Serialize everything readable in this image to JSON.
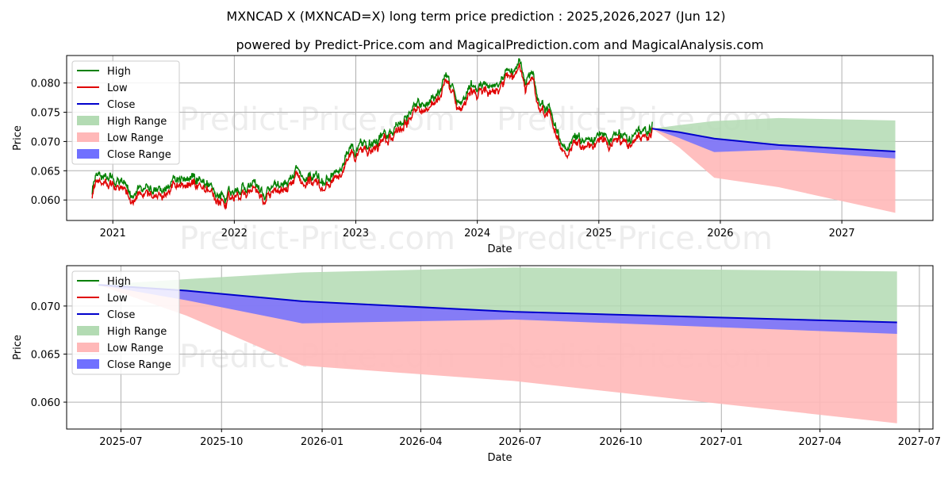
{
  "chart_data": {
    "type": "line",
    "title": "MXNCAD X (MXNCAD=X) long term price prediction : 2025,2026,2027 (Jun 12)",
    "subtitle": "powered by Predict-Price.com and MagicalPrediction.com and MagicalAnalysis.com",
    "watermark": "Predict-Price.com",
    "colors": {
      "high": "#008000",
      "low": "#e00000",
      "close": "#0000cc",
      "high_range": "#b3dbb3",
      "low_range": "#ffb8b8",
      "close_range": "#7070ff"
    },
    "legend": {
      "placement": "top-left",
      "entries": [
        "High",
        "Low",
        "Close",
        "High Range",
        "Low Range",
        "Close Range"
      ]
    },
    "panels": [
      {
        "name": "full-history",
        "xlabel": "Date",
        "ylabel": "Price",
        "xlim": [
          2020.62,
          2027.75
        ],
        "ylim": [
          0.0565,
          0.0847
        ],
        "grid": true,
        "x_ticks": [
          2021,
          2022,
          2023,
          2024,
          2025,
          2026,
          2027
        ],
        "x_tick_labels": [
          "2021",
          "2022",
          "2023",
          "2024",
          "2025",
          "2026",
          "2027"
        ],
        "y_ticks": [
          0.06,
          0.065,
          0.07,
          0.075,
          0.08
        ],
        "y_tick_labels": [
          "0.060",
          "0.065",
          "0.070",
          "0.075",
          "0.080"
        ]
      },
      {
        "name": "forecast-zoom",
        "xlabel": "Date",
        "ylabel": "Price",
        "xlim": [
          2025.36,
          2027.53
        ],
        "ylim": [
          0.0572,
          0.0742
        ],
        "grid": true,
        "x_ticks": [
          2025.496,
          2025.748,
          2026.0,
          2026.247,
          2026.496,
          2026.748,
          2027.0,
          2027.247,
          2027.496
        ],
        "x_tick_labels": [
          "2025-07",
          "2025-10",
          "2026-01",
          "2026-04",
          "2026-07",
          "2026-10",
          "2027-01",
          "2027-04",
          "2027-07"
        ],
        "y_ticks": [
          0.06,
          0.065,
          0.07
        ],
        "y_tick_labels": [
          "0.060",
          "0.065",
          "0.070"
        ]
      }
    ],
    "history_anchors": {
      "x": [
        2020.83,
        2020.85,
        2020.9,
        2020.95,
        2021.05,
        2021.15,
        2021.25,
        2021.35,
        2021.45,
        2021.55,
        2021.65,
        2021.75,
        2021.85,
        2021.95,
        2022.05,
        2022.15,
        2022.25,
        2022.35,
        2022.45,
        2022.55,
        2022.65,
        2022.75,
        2022.8,
        2022.85,
        2022.95,
        2023.05,
        2023.12,
        2023.2,
        2023.3,
        2023.4,
        2023.5,
        2023.6,
        2023.68,
        2023.75,
        2023.85,
        2023.95,
        2024.05,
        2024.15,
        2024.2,
        2024.28,
        2024.35,
        2024.4,
        2024.45,
        2024.52,
        2024.6,
        2024.7,
        2024.8,
        2024.9,
        2025.0,
        2025.1,
        2025.2,
        2025.3,
        2025.36,
        2025.44
      ],
      "close": [
        0.0608,
        0.0635,
        0.0643,
        0.0638,
        0.0628,
        0.0602,
        0.0615,
        0.0608,
        0.062,
        0.0628,
        0.0632,
        0.0615,
        0.06,
        0.0605,
        0.0612,
        0.062,
        0.061,
        0.0622,
        0.0632,
        0.064,
        0.0638,
        0.0628,
        0.064,
        0.065,
        0.068,
        0.069,
        0.0688,
        0.0702,
        0.071,
        0.074,
        0.076,
        0.0772,
        0.078,
        0.08,
        0.075,
        0.079,
        0.0782,
        0.0788,
        0.08,
        0.0815,
        0.083,
        0.079,
        0.081,
        0.075,
        0.0755,
        0.069,
        0.07,
        0.0695,
        0.0705,
        0.07,
        0.0702,
        0.0705,
        0.0712,
        0.0718
      ]
    },
    "forecast": {
      "x": [
        2025.44,
        2025.66,
        2025.95,
        2026.48,
        2027.44
      ],
      "close": [
        0.0722,
        0.0716,
        0.0705,
        0.0694,
        0.0683
      ],
      "high_range": [
        0.0722,
        0.0728,
        0.0735,
        0.074,
        0.0736
      ],
      "low_range": [
        0.0722,
        0.069,
        0.0638,
        0.0622,
        0.0578
      ],
      "close_range_upper": [
        0.0722,
        0.0716,
        0.0705,
        0.0694,
        0.0683
      ],
      "close_range_lower": [
        0.0722,
        0.0706,
        0.0682,
        0.0686,
        0.0671
      ]
    }
  }
}
